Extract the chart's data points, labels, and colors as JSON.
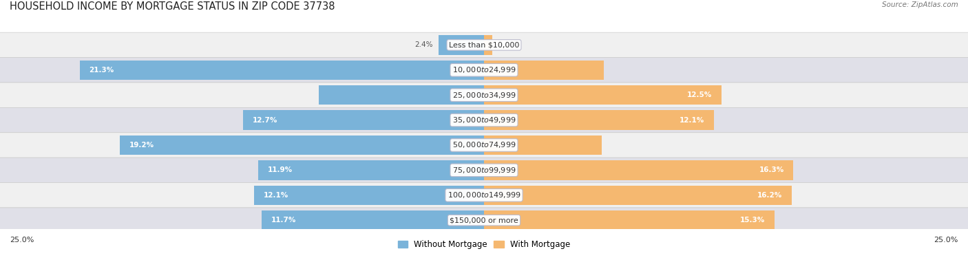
{
  "title": "HOUSEHOLD INCOME BY MORTGAGE STATUS IN ZIP CODE 37738",
  "source": "Source: ZipAtlas.com",
  "categories": [
    "Less than $10,000",
    "$10,000 to $24,999",
    "$25,000 to $34,999",
    "$35,000 to $49,999",
    "$50,000 to $74,999",
    "$75,000 to $99,999",
    "$100,000 to $149,999",
    "$150,000 or more"
  ],
  "without_mortgage": [
    2.4,
    21.3,
    8.7,
    12.7,
    19.2,
    11.9,
    12.1,
    11.7
  ],
  "with_mortgage": [
    0.45,
    6.3,
    12.5,
    12.1,
    6.2,
    16.3,
    16.2,
    15.3
  ],
  "color_without": "#7ab3d9",
  "color_with": "#f5b870",
  "xlim": 25.0,
  "row_bg_even": "#f0f0f0",
  "row_bg_odd": "#e0e0e8",
  "bg_color": "#ffffff",
  "title_fontsize": 10.5,
  "label_fontsize": 8.0,
  "bar_label_fontsize": 7.5,
  "legend_fontsize": 8.5,
  "axis_label_fontsize": 8.0
}
